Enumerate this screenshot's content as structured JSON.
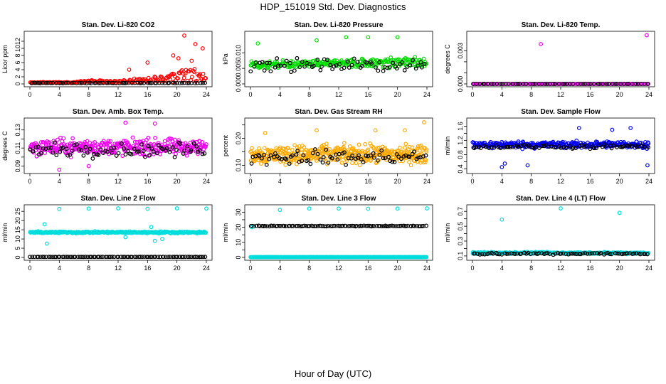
{
  "figure": {
    "title": "HDP_151019  Std. Dev. Diagnostics",
    "xlabel": "Hour of Day (UTC)"
  },
  "chart_data": [
    {
      "type": "scatter",
      "title": "Stan. Dev. Li-820 CO2",
      "ylabel": "Licor ppm",
      "xlim": [
        0,
        24
      ],
      "ylim": [
        0,
        14
      ],
      "xticks": [
        0,
        4,
        8,
        12,
        16,
        20,
        24
      ],
      "yticks": [
        0,
        2,
        4,
        6,
        8,
        10,
        12
      ],
      "series": [
        {
          "name": "main",
          "color": "#ff0000",
          "base": 0.4,
          "jitter": 0.5,
          "n": 190,
          "ramp": [
            [
              0,
              0
            ],
            [
              6,
              0
            ],
            [
              8,
              0.6
            ],
            [
              11,
              0.3
            ],
            [
              14,
              0.8
            ],
            [
              18,
              1.5
            ],
            [
              22,
              3.5
            ],
            [
              24,
              2.5
            ]
          ]
        },
        {
          "name": "ref",
          "color": "#000000",
          "base": 0.25,
          "jitter": 0.08,
          "n": 70
        }
      ],
      "outliers": [
        [
          21,
          13.6
        ],
        [
          22.5,
          11.2
        ],
        [
          23.5,
          10.0
        ],
        [
          20.2,
          7.2
        ],
        [
          19.5,
          8.0
        ],
        [
          16,
          6.0
        ],
        [
          22,
          6.5
        ],
        [
          13.5,
          4.0
        ]
      ]
    },
    {
      "type": "scatter",
      "title": "Stan. Dev. Li-820 Pressure",
      "ylabel": "kPa",
      "xlim": [
        0,
        24
      ],
      "ylim": [
        0,
        0.016
      ],
      "xticks": [
        0,
        4,
        8,
        12,
        16,
        20,
        24
      ],
      "yticks": [
        0.0,
        0.005,
        0.01
      ],
      "yticklabels": [
        "0.000",
        "0.005",
        "0.010"
      ],
      "series": [
        {
          "name": "main",
          "color": "#00dd00",
          "base": 0.006,
          "jitter": 0.004,
          "n": 260,
          "ramp": [
            [
              0,
              0
            ],
            [
              12,
              0.001
            ],
            [
              24,
              0.002
            ]
          ]
        },
        {
          "name": "ref",
          "color": "#000000",
          "base": 0.006,
          "jitter": 0.003,
          "n": 70
        }
      ],
      "outliers": [
        [
          1,
          0.013
        ],
        [
          9,
          0.014
        ],
        [
          13,
          0.015
        ],
        [
          16,
          0.015
        ],
        [
          20,
          0.015
        ]
      ]
    },
    {
      "type": "scatter",
      "title": "Stan. Dev. Li-820 Temp.",
      "ylabel": "degrees C",
      "xlim": [
        0,
        24
      ],
      "ylim": [
        0,
        0.0045
      ],
      "xticks": [
        0,
        4,
        8,
        12,
        16,
        20,
        24
      ],
      "yticks": [
        0.0,
        0.001,
        0.002,
        0.003
      ],
      "yticklabels": [
        "0.000",
        "",
        "",
        "0.003"
      ],
      "series": [
        {
          "name": "main",
          "color": "#ee00ee",
          "base": 0.0,
          "jitter": 0.0,
          "n": 150
        },
        {
          "name": "ref",
          "color": "#000000",
          "base": 0.0,
          "jitter": 0.0,
          "n": 60
        }
      ],
      "outliers": [
        [
          9.3,
          0.0036
        ],
        [
          23.7,
          0.0044
        ]
      ]
    },
    {
      "type": "scatter",
      "title": "Stan. Dev. Amb. Box Temp.",
      "ylabel": "degrees C",
      "xlim": [
        0,
        24
      ],
      "ylim": [
        0.085,
        0.14
      ],
      "xticks": [
        0,
        4,
        8,
        12,
        16,
        20,
        24
      ],
      "yticks": [
        0.09,
        0.1,
        0.11,
        0.12,
        0.13
      ],
      "yticklabels": [
        "0.09",
        "",
        "0.11",
        "",
        "0.13"
      ],
      "series": [
        {
          "name": "main",
          "color": "#ee00ee",
          "base": 0.111,
          "jitter": 0.013,
          "n": 360
        },
        {
          "name": "ref",
          "color": "#000000",
          "base": 0.108,
          "jitter": 0.011,
          "n": 80
        }
      ],
      "outliers": [
        [
          4,
          0.086
        ],
        [
          8,
          0.09
        ],
        [
          13,
          0.138
        ],
        [
          17,
          0.137
        ]
      ]
    },
    {
      "type": "scatter",
      "title": "Stan. Dev. Gas Stream RH",
      "ylabel": "percent",
      "xlim": [
        0,
        24
      ],
      "ylim": [
        0.08,
        0.265
      ],
      "xticks": [
        0,
        4,
        8,
        12,
        16,
        20,
        24
      ],
      "yticks": [
        0.1,
        0.15,
        0.2,
        0.25
      ],
      "yticklabels": [
        "0.10",
        "",
        "0.20",
        ""
      ],
      "series": [
        {
          "name": "main",
          "color": "#ffaa00",
          "base": 0.14,
          "jitter": 0.05,
          "n": 420
        },
        {
          "name": "ref",
          "color": "#000000",
          "base": 0.13,
          "jitter": 0.04,
          "n": 80
        }
      ],
      "outliers": [
        [
          2,
          0.22
        ],
        [
          9,
          0.23
        ],
        [
          17,
          0.23
        ],
        [
          21,
          0.23
        ],
        [
          23.6,
          0.26
        ]
      ]
    },
    {
      "type": "scatter",
      "title": "Stan. Dev. Sample Flow",
      "ylabel": "ml/min",
      "xlim": [
        0,
        24
      ],
      "ylim": [
        0.35,
        1.75
      ],
      "xticks": [
        0,
        4,
        8,
        12,
        16,
        20,
        24
      ],
      "yticks": [
        0.4,
        0.6,
        0.8,
        1.0,
        1.2,
        1.4,
        1.6
      ],
      "yticklabels": [
        "0.4",
        "",
        "0.8",
        "",
        "1.2",
        "",
        "1.6"
      ],
      "series": [
        {
          "name": "main",
          "color": "#0000ee",
          "base": 1.08,
          "jitter": 0.14,
          "n": 320
        },
        {
          "name": "ref",
          "color": "#000000",
          "base": 1.02,
          "jitter": 0.08,
          "n": 70
        }
      ],
      "outliers": [
        [
          4,
          0.45
        ],
        [
          4.4,
          0.55
        ],
        [
          7.5,
          0.5
        ],
        [
          23.8,
          0.5
        ],
        [
          14.5,
          1.55
        ],
        [
          19,
          1.5
        ],
        [
          21.5,
          1.55
        ]
      ]
    },
    {
      "type": "scatter",
      "title": "Stan. Dev. Line 2 Flow",
      "ylabel": "ml/min",
      "xlim": [
        0,
        24
      ],
      "ylim": [
        0,
        27
      ],
      "xticks": [
        0,
        4,
        8,
        12,
        16,
        20,
        24
      ],
      "yticks": [
        0,
        5,
        10,
        15,
        20,
        25
      ],
      "series": [
        {
          "name": "main",
          "color": "#00dddd",
          "base": 13.6,
          "jitter": 0.7,
          "n": 300
        },
        {
          "name": "ref",
          "color": "#000000",
          "base": 0.3,
          "jitter": 0.05,
          "n": 90
        }
      ],
      "outliers": [
        [
          4,
          26.3
        ],
        [
          8,
          26.5
        ],
        [
          12,
          26.6
        ],
        [
          16,
          26.4
        ],
        [
          20,
          26.6
        ],
        [
          24,
          26.5
        ],
        [
          2.3,
          7.5
        ],
        [
          2,
          18
        ],
        [
          17,
          9
        ],
        [
          18,
          10
        ],
        [
          13,
          11
        ],
        [
          16.5,
          16.5
        ]
      ]
    },
    {
      "type": "scatter",
      "title": "Stan. Dev. Line 3 Flow",
      "ylabel": "ml/min",
      "xlim": [
        0,
        24
      ],
      "ylim": [
        0,
        33
      ],
      "xticks": [
        0,
        4,
        8,
        12,
        16,
        20,
        24
      ],
      "yticks": [
        0,
        5,
        10,
        15,
        20,
        25,
        30
      ],
      "yticklabels": [
        "0",
        "",
        "10",
        "",
        "20",
        "",
        "30"
      ],
      "series": [
        {
          "name": "main",
          "color": "#00dddd",
          "base": 0.2,
          "jitter": 0.05,
          "n": 300
        },
        {
          "name": "ref",
          "color": "#000000",
          "base": 20.8,
          "jitter": 0.35,
          "n": 100
        }
      ],
      "outliers": [
        [
          4,
          31.5
        ],
        [
          8,
          32.4
        ],
        [
          12,
          32.4
        ],
        [
          16,
          32.3
        ],
        [
          20,
          32.4
        ],
        [
          24,
          32.5
        ],
        [
          0.2,
          20
        ]
      ]
    },
    {
      "type": "scatter",
      "title": "Stan. Dev. Line 4 (LT) Flow",
      "ylabel": "ml/min",
      "xlim": [
        0,
        24
      ],
      "ylim": [
        0.08,
        0.75
      ],
      "xticks": [
        0,
        4,
        8,
        12,
        16,
        20,
        24
      ],
      "yticks": [
        0.1,
        0.2,
        0.3,
        0.4,
        0.5,
        0.6,
        0.7
      ],
      "yticklabels": [
        "0.1",
        "",
        "0.3",
        "",
        "0.5",
        "",
        "0.7"
      ],
      "series": [
        {
          "name": "main",
          "color": "#00dddd",
          "base": 0.14,
          "jitter": 0.018,
          "n": 300
        },
        {
          "name": "ref",
          "color": "#000000",
          "base": 0.13,
          "jitter": 0.02,
          "n": 80
        }
      ],
      "outliers": [
        [
          4,
          0.59
        ],
        [
          12,
          0.74
        ],
        [
          20,
          0.68
        ]
      ]
    }
  ]
}
